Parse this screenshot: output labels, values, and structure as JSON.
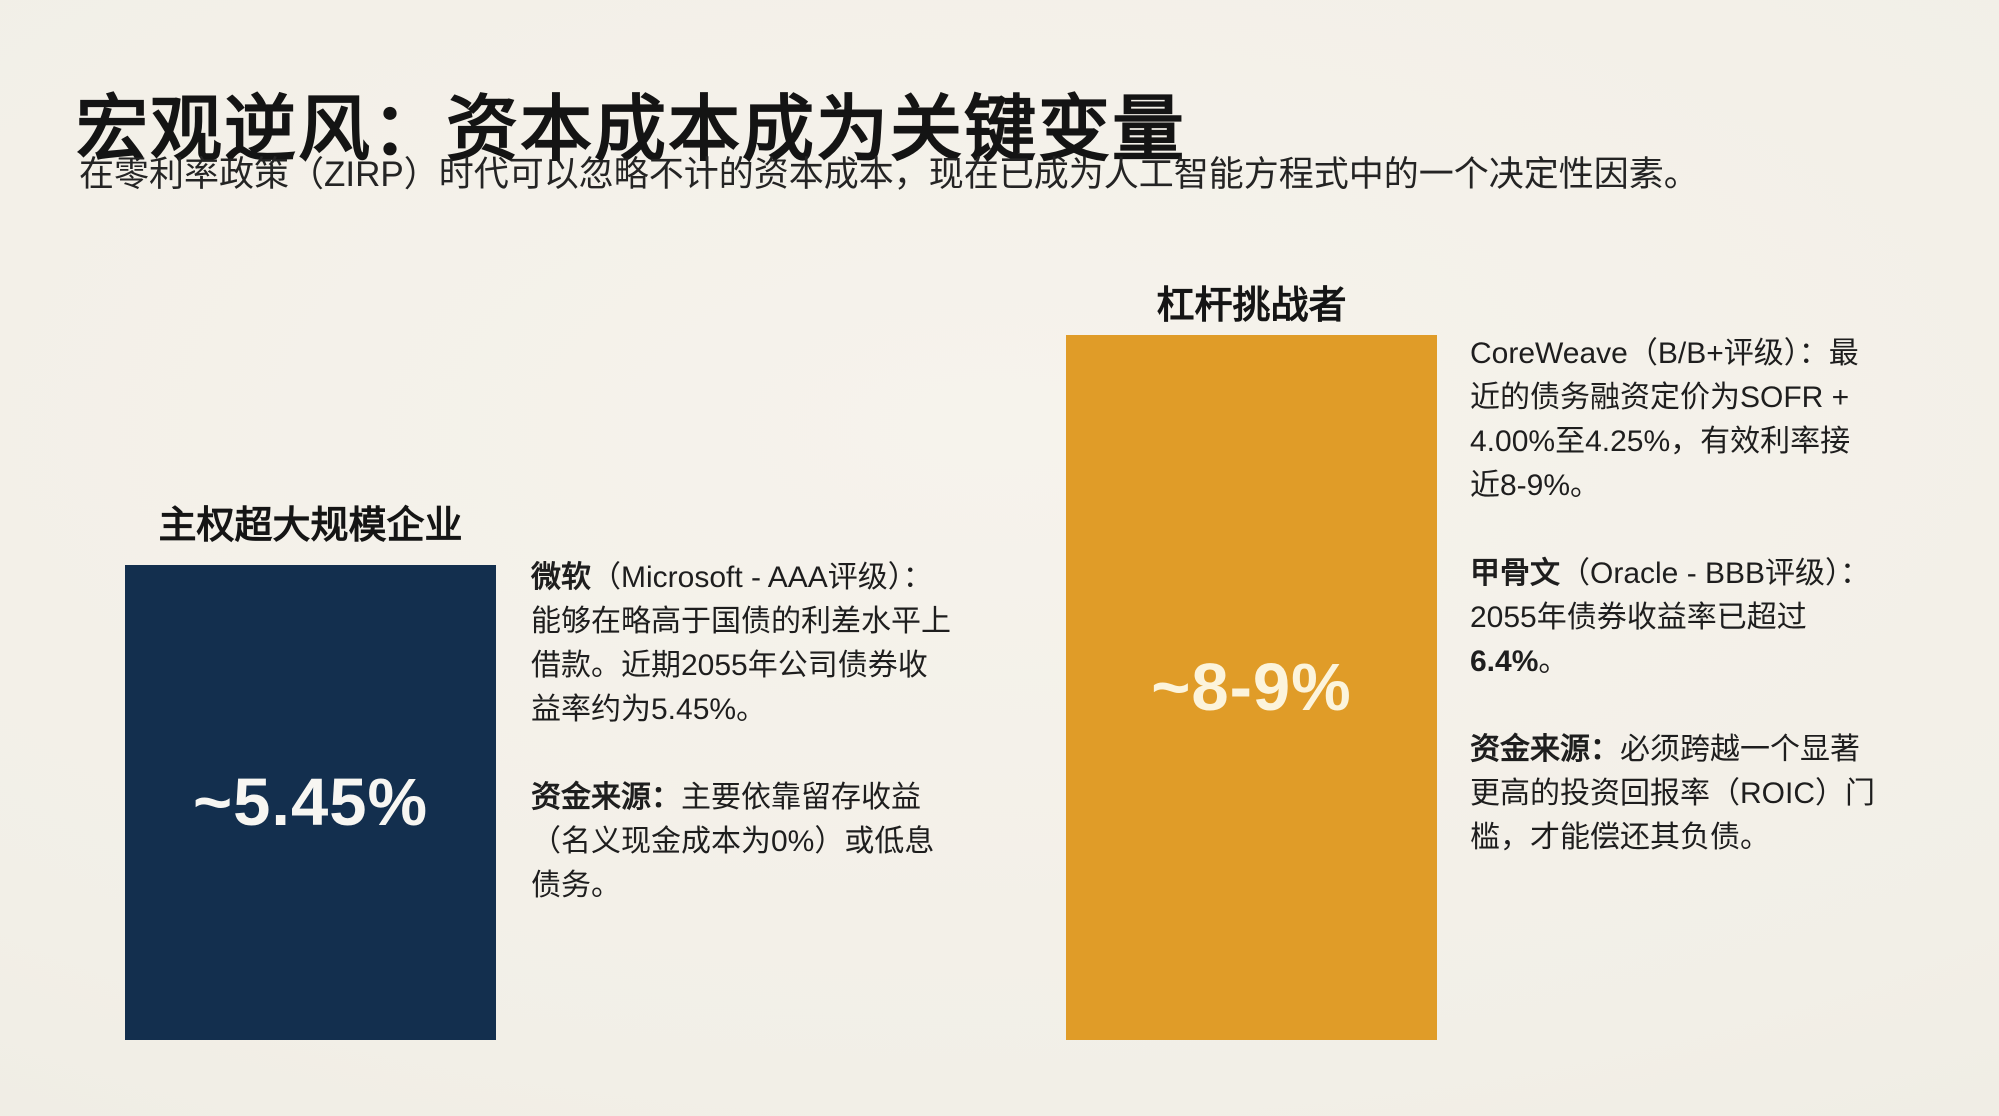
{
  "slide": {
    "title": "宏观逆风：资本成本成为关键变量",
    "subtitle": "在零利率政策（ZIRP）时代可以忽略不计的资本成本，现在已成为人工智能方程式中的一个决定性因素。"
  },
  "left_group": {
    "label": "主权超大规模企业",
    "bar_value": "~5.45%",
    "bar_color": "#132f4e",
    "value_color": "#f7f6f2",
    "p1_bold": "微软",
    "p1_rest": "（Microsoft - AAA评级）：\n能够在略高于国债的利差水平上\n借款。近期2055年公司债券收\n益率约为5.45%。",
    "p2_bold": "资金来源：",
    "p2_rest": "主要依靠留存收益\n（名义现金成本为0%）或低息\n债务。"
  },
  "right_group": {
    "label": "杠杆挑战者",
    "bar_value": "~8-9%",
    "bar_color": "#e09c28",
    "value_color": "#fcf4dc",
    "p1": "CoreWeave（B/B+评级）：最\n近的债务融资定价为SOFR +\n4.00%至4.25%，有效利率接\n近8-9%。",
    "p2_bold": "甲骨文",
    "p2_mid": "（Oracle - BBB评级）：\n2055年债券收益率已超过\n",
    "p2_bold2": "6.4%",
    "p2_end": "。",
    "p3_bold": "资金来源：",
    "p3_rest": "必须跨越一个显著\n更高的投资回报率（ROIC）门\n槛，才能偿还其负债。"
  },
  "chart_data": {
    "type": "bar",
    "title": "宏观逆风：资本成本成为关键变量",
    "categories": [
      "主权超大规模企业",
      "杠杆挑战者"
    ],
    "values": [
      5.45,
      8.5
    ],
    "value_labels": [
      "~5.45%",
      "~8-9%"
    ],
    "colors": [
      "#132f4e",
      "#e09c28"
    ],
    "xlabel": "",
    "ylabel": "",
    "legend": false,
    "grid": false,
    "annotations": [
      "微软（Microsoft - AAA评级）：能够在略高于国债的利差水平上借款。近期2055年公司债券收益率约为5.45%。",
      "资金来源：主要依靠留存收益（名义现金成本为0%）或低息债务。",
      "CoreWeave（B/B+评级）：最近的债务融资定价为SOFR + 4.00%至4.25%，有效利率接近8-9%。",
      "甲骨文（Oracle - BBB评级）：2055年债券收益率已超过6.4%。",
      "资金来源：必须跨越一个显著更高的投资回报率（ROIC）门槛，才能偿还其负债。"
    ]
  }
}
